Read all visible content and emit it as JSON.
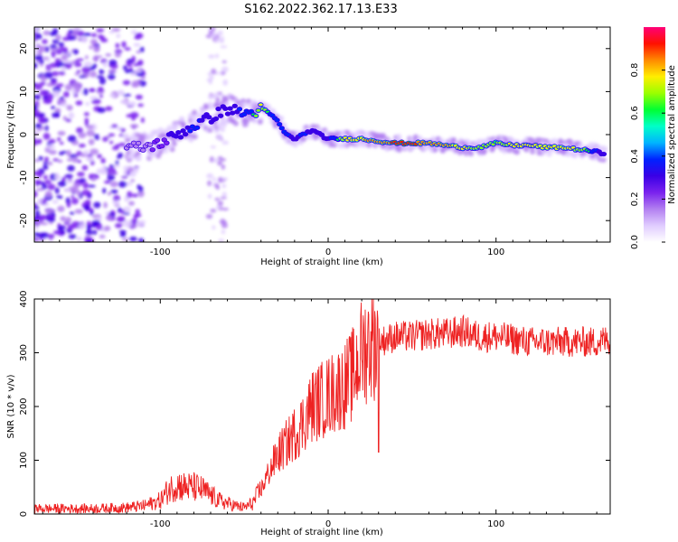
{
  "title": "S162.2022.362.17.13.E33",
  "colors": {
    "snr_line": "#ee2222",
    "axis": "#000000",
    "colormap": [
      "#ffffff",
      "#e0ccff",
      "#b27ff0",
      "#7a22ee",
      "#3a00e6",
      "#0022ff",
      "#00b4ff",
      "#00ffc8",
      "#00ff33",
      "#9aff00",
      "#ffee00",
      "#ff8a00",
      "#ff1100",
      "#ff0077"
    ]
  },
  "chart_data": [
    {
      "type": "heatmap",
      "xlabel": "Height of straight line (km)",
      "ylabel": "Frequency (Hz)",
      "xlim": [
        -175,
        168
      ],
      "ylim": [
        -25,
        25
      ],
      "x_ticks": [
        -100,
        0,
        100
      ],
      "x_tick_labels": [
        "-100",
        "0",
        "100"
      ],
      "y_ticks": [
        -20,
        -10,
        0,
        10,
        20
      ],
      "y_tick_labels": [
        "-20",
        "-10",
        "0",
        "10",
        "20"
      ],
      "colorbar": {
        "label": "Normalized spectral amplitude",
        "range": [
          0,
          1
        ],
        "ticks": [
          0.0,
          0.2,
          0.4,
          0.6,
          0.8
        ],
        "tick_labels": [
          "0.0",
          "0.2",
          "0.4",
          "0.6",
          "0.8"
        ]
      },
      "ridge": {
        "x": [
          -120,
          -110,
          -100,
          -90,
          -80,
          -70,
          -60,
          -50,
          -45,
          -40,
          -35,
          -30,
          -25,
          -20,
          -15,
          -10,
          -5,
          0,
          5,
          10,
          20,
          30,
          40,
          50,
          60,
          70,
          80,
          90,
          100,
          110,
          120,
          130,
          140,
          150,
          160,
          165
        ],
        "frequency": [
          -3,
          -3,
          -2,
          0,
          2,
          4,
          6,
          5,
          5,
          6,
          5,
          3,
          0,
          -1,
          0,
          1,
          0,
          -1,
          -1,
          -1,
          -1,
          -1.5,
          -2,
          -2,
          -2,
          -2.5,
          -3,
          -3,
          -2,
          -2.5,
          -2.5,
          -3,
          -3,
          -3.5,
          -4,
          -4.5
        ],
        "amplitude": [
          0.2,
          0.25,
          0.35,
          0.5,
          0.55,
          0.5,
          0.5,
          0.55,
          0.6,
          0.75,
          0.6,
          0.6,
          0.55,
          0.5,
          0.55,
          0.5,
          0.5,
          0.5,
          0.6,
          0.75,
          0.8,
          0.85,
          0.9,
          0.9,
          0.85,
          0.85,
          0.75,
          0.7,
          0.65,
          0.75,
          0.75,
          0.8,
          0.8,
          0.7,
          0.55,
          0.45
        ]
      }
    },
    {
      "type": "line",
      "xlabel": "Height of straight line (km)",
      "ylabel": "SNR (10 * v/v)",
      "xlim": [
        -175,
        168
      ],
      "ylim": [
        0,
        400
      ],
      "x_ticks": [
        -100,
        0,
        100
      ],
      "x_tick_labels": [
        "-100",
        "0",
        "100"
      ],
      "y_ticks": [
        0,
        100,
        200,
        300,
        400
      ],
      "y_tick_labels": [
        "0",
        "100",
        "200",
        "300",
        "400"
      ],
      "x": [
        -175,
        -160,
        -140,
        -120,
        -110,
        -100,
        -95,
        -90,
        -85,
        -80,
        -75,
        -70,
        -65,
        -60,
        -55,
        -50,
        -45,
        -40,
        -35,
        -30,
        -25,
        -20,
        -15,
        -10,
        -5,
        0,
        5,
        10,
        15,
        20,
        25,
        30,
        35,
        40,
        50,
        60,
        70,
        80,
        90,
        100,
        110,
        120,
        130,
        140,
        150,
        160,
        168
      ],
      "y": [
        10,
        10,
        10,
        12,
        15,
        25,
        45,
        55,
        50,
        50,
        45,
        35,
        25,
        20,
        15,
        12,
        20,
        45,
        80,
        110,
        130,
        150,
        170,
        200,
        210,
        220,
        230,
        240,
        260,
        300,
        320,
        320,
        325,
        330,
        330,
        335,
        335,
        340,
        330,
        330,
        325,
        320,
        320,
        320,
        320,
        320,
        325
      ]
    }
  ]
}
